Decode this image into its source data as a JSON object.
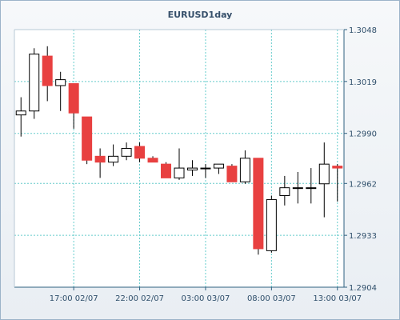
{
  "chart_data": {
    "type": "candlestick",
    "title": "EURUSD1day",
    "xlabel": "",
    "ylabel": "",
    "ylim": [
      1.2904,
      1.3048
    ],
    "y_ticks": [
      "1.3048",
      "1.3019",
      "1.2990",
      "1.2962",
      "1.2933",
      "1.2904"
    ],
    "x_ticks": [
      {
        "label": "17:00 02/07",
        "index": 4
      },
      {
        "label": "22:00 02/07",
        "index": 9
      },
      {
        "label": "03:00 03/07",
        "index": 14
      },
      {
        "label": "08:00 03/07",
        "index": 19
      },
      {
        "label": "13:00 03/07",
        "index": 24
      }
    ],
    "grid": true,
    "colors": {
      "up": "#ffffff",
      "down": "#e84040",
      "grid": "#66cccc",
      "axis": "#2f6080"
    },
    "candles": [
      {
        "open": 1.30003,
        "high": 1.30102,
        "low": 1.29882,
        "close": 1.30025
      },
      {
        "open": 1.30025,
        "high": 1.30376,
        "low": 1.29981,
        "close": 1.30343
      },
      {
        "open": 1.30332,
        "high": 1.30387,
        "low": 1.3008,
        "close": 1.30167
      },
      {
        "open": 1.30167,
        "high": 1.30244,
        "low": 1.30025,
        "close": 1.302
      },
      {
        "open": 1.30178,
        "high": 1.30178,
        "low": 1.29926,
        "close": 1.30014
      },
      {
        "open": 1.29992,
        "high": 1.29992,
        "low": 1.29728,
        "close": 1.2975
      },
      {
        "open": 1.29772,
        "high": 1.29816,
        "low": 1.29651,
        "close": 1.29739
      },
      {
        "open": 1.29739,
        "high": 1.29838,
        "low": 1.29717,
        "close": 1.29772
      },
      {
        "open": 1.29772,
        "high": 1.29849,
        "low": 1.2975,
        "close": 1.29816
      },
      {
        "open": 1.29827,
        "high": 1.29849,
        "low": 1.29739,
        "close": 1.29761
      },
      {
        "open": 1.29761,
        "high": 1.29772,
        "low": 1.29739,
        "close": 1.29739
      },
      {
        "open": 1.29728,
        "high": 1.29739,
        "low": 1.29662,
        "close": 1.29651
      },
      {
        "open": 1.29651,
        "high": 1.29816,
        "low": 1.2964,
        "close": 1.29706
      },
      {
        "open": 1.29695,
        "high": 1.2975,
        "low": 1.29662,
        "close": 1.29706
      },
      {
        "open": 1.29706,
        "high": 1.29728,
        "low": 1.29651,
        "close": 1.29706
      },
      {
        "open": 1.29706,
        "high": 1.29728,
        "low": 1.29673,
        "close": 1.29728
      },
      {
        "open": 1.29717,
        "high": 1.29728,
        "low": 1.29629,
        "close": 1.29629
      },
      {
        "open": 1.29629,
        "high": 1.29805,
        "low": 1.29618,
        "close": 1.29761
      },
      {
        "open": 1.29761,
        "high": 1.29761,
        "low": 1.29222,
        "close": 1.29255
      },
      {
        "open": 1.29244,
        "high": 1.29552,
        "low": 1.29233,
        "close": 1.2953
      },
      {
        "open": 1.29552,
        "high": 1.29662,
        "low": 1.29497,
        "close": 1.29596
      },
      {
        "open": 1.29596,
        "high": 1.29684,
        "low": 1.29508,
        "close": 1.29596
      },
      {
        "open": 1.29596,
        "high": 1.29706,
        "low": 1.29508,
        "close": 1.29596
      },
      {
        "open": 1.29618,
        "high": 1.29849,
        "low": 1.29431,
        "close": 1.29728
      },
      {
        "open": 1.29717,
        "high": 1.29728,
        "low": 1.29519,
        "close": 1.29706
      }
    ]
  }
}
